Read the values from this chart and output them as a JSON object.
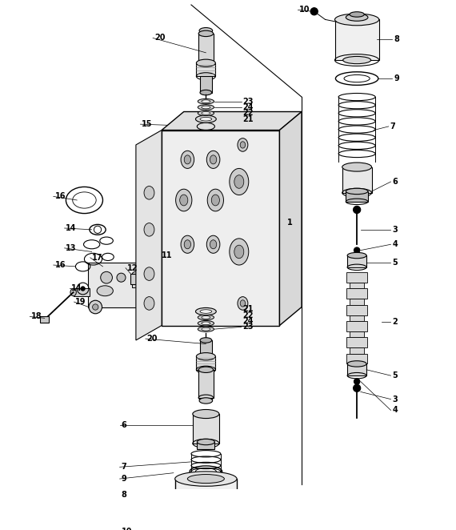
{
  "bg_color": "#ffffff",
  "fig_width": 5.7,
  "fig_height": 6.62,
  "dpi": 100
}
